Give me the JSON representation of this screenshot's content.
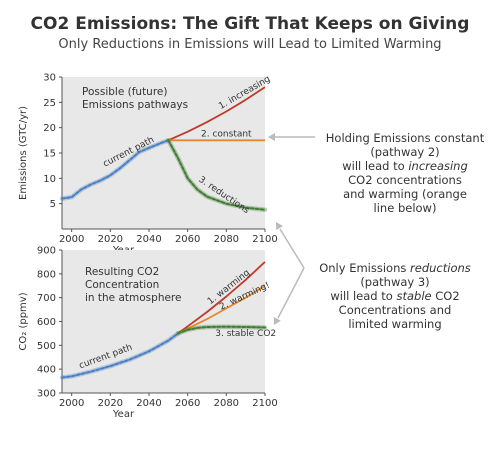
{
  "header": {
    "title": "CO2 Emissions: The Gift That Keeps on Giving",
    "subtitle": "Only Reductions in Emissions will Lead to Limited Warming"
  },
  "chart_data": [
    {
      "type": "line",
      "panel_label_1": "Possible (future)",
      "panel_label_2": "Emissions pathways",
      "xlabel": "Year",
      "ylabel": "Emissions (GTC/yr)",
      "xlim": [
        1995,
        2100
      ],
      "ylim": [
        0,
        30
      ],
      "xticks": [
        "2000",
        "2020",
        "2040",
        "2060",
        "2080",
        "2100"
      ],
      "yticks": [
        "5",
        "10",
        "15",
        "20",
        "25",
        "30"
      ],
      "grid": false,
      "series": [
        {
          "name": "current path",
          "color": "#4a7fc1",
          "style": "glow",
          "x": [
            1995,
            2000,
            2005,
            2010,
            2015,
            2020,
            2025,
            2030,
            2035,
            2040,
            2045,
            2050
          ],
          "y": [
            6.0,
            6.3,
            7.8,
            8.8,
            9.6,
            10.6,
            12.0,
            13.6,
            15.2,
            16.0,
            16.8,
            17.5
          ]
        },
        {
          "name": "1. increasing",
          "color": "#c0392b",
          "style": "plain",
          "x": [
            2050,
            2060,
            2070,
            2080,
            2090,
            2100
          ],
          "y": [
            17.5,
            19.2,
            21.1,
            23.2,
            25.5,
            28.0
          ]
        },
        {
          "name": "2. constant",
          "color": "#e8862b",
          "style": "plain",
          "x": [
            2050,
            2100
          ],
          "y": [
            17.5,
            17.5
          ]
        },
        {
          "name": "3. reductions",
          "color": "#3f7d32",
          "style": "glow",
          "x": [
            2050,
            2055,
            2060,
            2065,
            2070,
            2080,
            2090,
            2100
          ],
          "y": [
            17.5,
            14.0,
            10.0,
            7.8,
            6.4,
            5.0,
            4.2,
            3.8
          ]
        }
      ]
    },
    {
      "type": "line",
      "panel_label_1": "Resulting CO2",
      "panel_label_2": "Concentration",
      "panel_label_3": "in the atmosphere",
      "xlabel": "Year",
      "ylabel": "CO₂ (ppmv)",
      "xlim": [
        1995,
        2100
      ],
      "ylim": [
        300,
        900
      ],
      "xticks": [
        "2000",
        "2020",
        "2040",
        "2060",
        "2080",
        "2100"
      ],
      "yticks": [
        "300",
        "400",
        "500",
        "600",
        "700",
        "800",
        "900"
      ],
      "grid": false,
      "series": [
        {
          "name": "current path",
          "color": "#4a7fc1",
          "style": "glow",
          "x": [
            1995,
            2000,
            2010,
            2020,
            2030,
            2040,
            2050,
            2055
          ],
          "y": [
            365,
            370,
            390,
            413,
            440,
            475,
            520,
            550
          ]
        },
        {
          "name": "1. warming",
          "color": "#c0392b",
          "style": "plain",
          "x": [
            2055,
            2060,
            2070,
            2080,
            2090,
            2100
          ],
          "y": [
            550,
            580,
            640,
            705,
            775,
            850
          ]
        },
        {
          "name": "2. warming!",
          "color": "#e8862b",
          "style": "plain",
          "x": [
            2055,
            2060,
            2070,
            2080,
            2090,
            2100
          ],
          "y": [
            550,
            570,
            610,
            655,
            700,
            750
          ]
        },
        {
          "name": "3. stable CO2",
          "color": "#3f7d32",
          "style": "glow",
          "x": [
            2055,
            2060,
            2065,
            2070,
            2080,
            2090,
            2100
          ],
          "y": [
            550,
            565,
            573,
            577,
            578,
            577,
            575
          ]
        }
      ]
    }
  ],
  "notes": {
    "constant": {
      "l1": "Holding Emissions constant",
      "l2": "(pathway 2)",
      "l3a": "will lead to ",
      "l3b": "increasing",
      "l4": "CO2 concentrations",
      "l5": "and warming (orange",
      "l6": "line below)"
    },
    "reductions": {
      "l1a": "Only Emissions ",
      "l1b": "reductions",
      "l2": "(pathway 3)",
      "l3a": "will lead to ",
      "l3b": "stable",
      "l3c": " CO2",
      "l4": "Concentrations and",
      "l5": "limited warming"
    }
  },
  "colors": {
    "panel_bg": "#e8e8e8",
    "arrow": "#bbbbbb"
  }
}
